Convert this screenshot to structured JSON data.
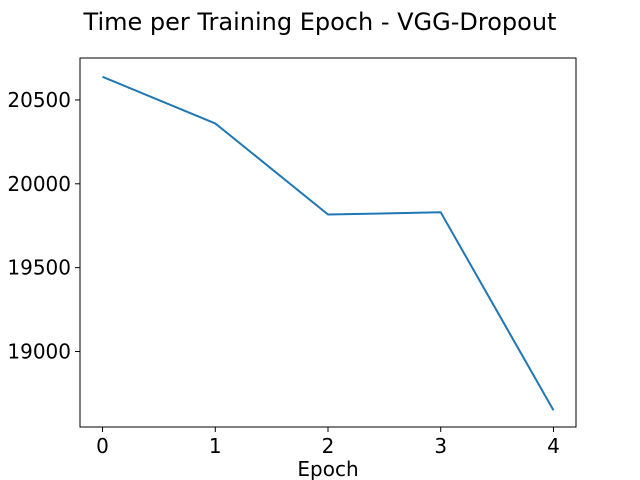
{
  "chart_data": {
    "type": "line",
    "title": "Time per Training Epoch - VGG-Dropout",
    "xlabel": "Epoch",
    "ylabel": "",
    "x": [
      0,
      1,
      2,
      3,
      4
    ],
    "xticks": [
      "0",
      "1",
      "2",
      "3",
      "4"
    ],
    "yticks": [
      "19000",
      "19500",
      "20000",
      "20500"
    ],
    "ytick_values": [
      19000,
      19500,
      20000,
      20500
    ],
    "series": [
      {
        "values": [
          20638,
          20360,
          19817,
          19830,
          18650
        ],
        "color": "#1f77b4"
      }
    ],
    "xlim": [
      -0.2,
      4.2
    ],
    "ylim": [
      18550,
      20750
    ],
    "grid": false,
    "legend": "none"
  }
}
